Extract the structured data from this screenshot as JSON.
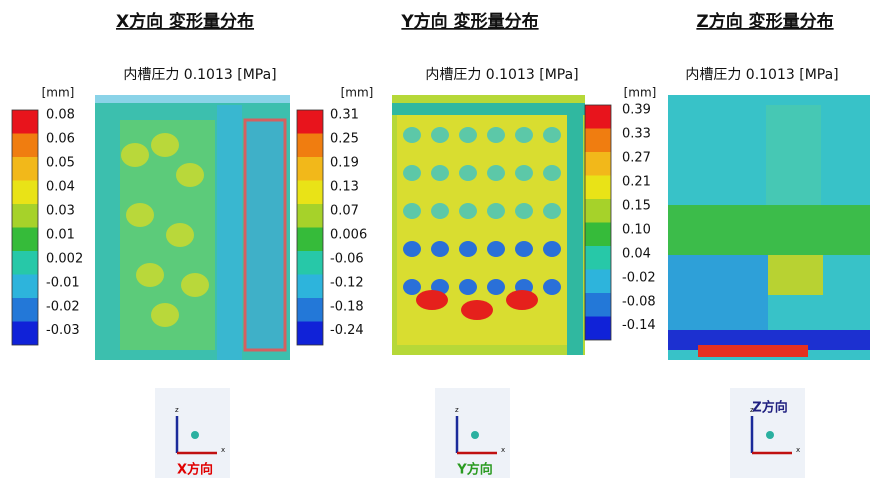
{
  "panels": [
    {
      "title": "X方向 変形量分布",
      "subtitle": "内槽圧力 0.1013 [MPa]",
      "unit": "[mm]",
      "legend": [
        "0.08",
        "0.06",
        "0.05",
        "0.04",
        "0.03",
        "0.01",
        "0.002",
        "-0.01",
        "-0.02",
        "-0.03"
      ],
      "axis_z": "z",
      "axis_x": "x",
      "axis_label": "X方向"
    },
    {
      "title": "Y方向 変形量分布",
      "subtitle": "内槽圧力 0.1013 [MPa]",
      "unit": "[mm]",
      "legend": [
        "0.31",
        "0.25",
        "0.19",
        "0.13",
        "0.07",
        "0.006",
        "-0.06",
        "-0.12",
        "-0.18",
        "-0.24"
      ],
      "axis_z": "z",
      "axis_x": "x",
      "axis_label": "Y方向"
    },
    {
      "title": "Z方向 変形量分布",
      "subtitle": "内槽圧力 0.1013 [MPa]",
      "unit": "[mm]",
      "legend": [
        "0.39",
        "0.33",
        "0.27",
        "0.21",
        "0.15",
        "0.10",
        "0.04",
        "-0.02",
        "-0.08",
        "-0.14"
      ],
      "axis_z": "z",
      "axis_x": "x",
      "axis_label": "Z方向"
    }
  ]
}
